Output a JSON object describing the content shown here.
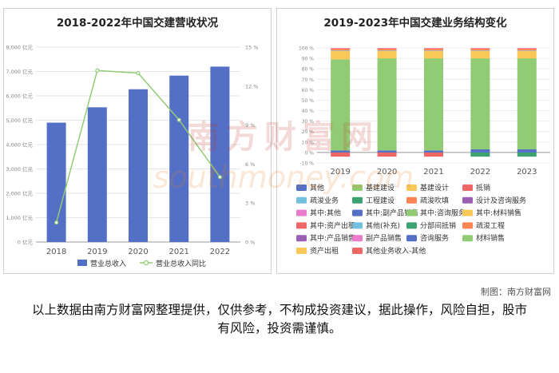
{
  "left": {
    "title": "2018-2022年中国交建营收状况",
    "legend": {
      "bar": "营业总收入",
      "line": "营业总收入同比"
    },
    "colors": {
      "bar": "#5470c6",
      "line": "#91cc75"
    }
  },
  "right": {
    "title": "2019-2023年中国交建业务结构变化",
    "legend_items": [
      {
        "label": "其他",
        "color": "#5470c6"
      },
      {
        "label": "基建建设",
        "color": "#91cc75"
      },
      {
        "label": "基建设计",
        "color": "#fac858"
      },
      {
        "label": "抵销",
        "color": "#ee6666"
      },
      {
        "label": "疏浚业务",
        "color": "#73c0de"
      },
      {
        "label": "工程建设",
        "color": "#3ba272"
      },
      {
        "label": "疏浚吹填",
        "color": "#fc8452"
      },
      {
        "label": "设计及咨询服务",
        "color": "#9a60b4"
      },
      {
        "label": "其中:其他",
        "color": "#ea7ccc"
      },
      {
        "label": "其中:副产品销售",
        "color": "#5470c6"
      },
      {
        "label": "其中:咨询服务",
        "color": "#91cc75"
      },
      {
        "label": "其中:材料销售",
        "color": "#fac858"
      },
      {
        "label": "其中:资产出租",
        "color": "#ee6666"
      },
      {
        "label": "其他(补充)",
        "color": "#73c0de"
      },
      {
        "label": "分部间抵销",
        "color": "#3ba272"
      },
      {
        "label": "疏浚工程",
        "color": "#fc8452"
      },
      {
        "label": "其中:产品销售",
        "color": "#9a60b4"
      },
      {
        "label": "副产品销售",
        "color": "#ea7ccc"
      },
      {
        "label": "咨询服务",
        "color": "#5470c6"
      },
      {
        "label": "材料销售",
        "color": "#91cc75"
      },
      {
        "label": "资产出租",
        "color": "#fac858"
      },
      {
        "label": "其他业务收入-其他",
        "color": "#ee6666"
      }
    ]
  },
  "credit": "制图：南方财富网",
  "disclaimer": "以上数据由南方财富网整理提供，仅供参考，不构成投资建议，据此操作，风险自担，股市有风险，投资需谨慎。",
  "watermark": {
    "cn": "南方财富网",
    "en": "southmoney.com"
  },
  "chart_data": [
    {
      "type": "bar",
      "title": "2018-2022年中国交建营收状况",
      "categories": [
        "2018",
        "2019",
        "2020",
        "2021",
        "2022"
      ],
      "series": [
        {
          "name": "营业总收入",
          "type": "bar",
          "axis": "left",
          "values": [
            4900,
            5530,
            6270,
            6830,
            7200
          ]
        },
        {
          "name": "营业总收入同比",
          "type": "line",
          "axis": "right",
          "values": [
            1.5,
            13.2,
            13.0,
            9.4,
            5.0
          ]
        }
      ],
      "y_left": {
        "min": 0,
        "max": 8000,
        "ticks": [
          0,
          1000,
          2000,
          3000,
          4000,
          5000,
          6000,
          7000,
          8000
        ],
        "tick_labels": [
          "0 亿元",
          "1,000 亿元",
          "2,000 亿元",
          "3,000 亿元",
          "4,000 亿元",
          "5,000 亿元",
          "6,000 亿元",
          "7,000 亿元",
          "8,000 亿元"
        ]
      },
      "y_right": {
        "min": 0,
        "max": 15,
        "ticks": [
          0,
          3,
          6,
          9,
          12,
          15
        ],
        "tick_labels": [
          "0 %",
          "3 %",
          "6 %",
          "9 %",
          "12 %",
          "15 %"
        ]
      },
      "grid": true,
      "legend_position": "bottom"
    },
    {
      "type": "bar",
      "stacked": true,
      "title": "2019-2023年中国交建业务结构变化",
      "categories": [
        "2019",
        "2020",
        "2021",
        "2022",
        "2023"
      ],
      "series": [
        {
          "name": "抵销",
          "color": "#ee6666",
          "values": [
            -4,
            -4,
            -4,
            0,
            0
          ]
        },
        {
          "name": "分部间抵销",
          "color": "#3ba272",
          "values": [
            0,
            0,
            0,
            -4,
            -4
          ]
        },
        {
          "name": "其他",
          "color": "#5470c6",
          "values": [
            2,
            2,
            2,
            3,
            3
          ]
        },
        {
          "name": "基建建设",
          "color": "#91cc75",
          "values": [
            87,
            88,
            88,
            87,
            87
          ]
        },
        {
          "name": "基建设计",
          "color": "#fac858",
          "values": [
            8,
            7,
            7,
            7,
            7
          ]
        },
        {
          "name": "疏浚业务",
          "color": "#73c0de",
          "values": [
            0.5,
            0.5,
            0.5,
            0.5,
            0.5
          ]
        },
        {
          "name": "疏浚吹填",
          "color": "#fc8452",
          "values": [
            2,
            2,
            2,
            2,
            2
          ]
        },
        {
          "name": "其中:其他",
          "color": "#ea7ccc",
          "values": [
            0.5,
            0.5,
            0.5,
            0.5,
            0.5
          ]
        }
      ],
      "y": {
        "min": -10,
        "max": 100,
        "ticks": [
          -10,
          0,
          10,
          20,
          30,
          40,
          50,
          60,
          70,
          80,
          90,
          100
        ],
        "tick_labels": [
          "-10 %",
          "0 %",
          "10 %",
          "20 %",
          "30 %",
          "40 %",
          "50 %",
          "60 %",
          "70 %",
          "80 %",
          "90 %",
          "100 %"
        ]
      },
      "grid": true,
      "legend_position": "bottom"
    }
  ]
}
